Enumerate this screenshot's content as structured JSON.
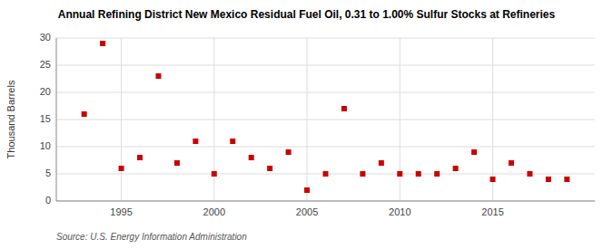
{
  "chart_data": {
    "type": "scatter",
    "title": "Annual Refining District New Mexico Residual Fuel Oil, 0.31 to 1.00% Sulfur Stocks at Refineries",
    "ylabel": "Thousand Barrels",
    "source": "Source: U.S. Energy Information Administration",
    "x": [
      1993,
      1994,
      1995,
      1996,
      1997,
      1998,
      1999,
      2000,
      2001,
      2002,
      2003,
      2004,
      2005,
      2006,
      2007,
      2008,
      2009,
      2010,
      2011,
      2012,
      2013,
      2014,
      2015,
      2016,
      2017,
      2018,
      2019
    ],
    "values": [
      16,
      29,
      6,
      8,
      23,
      7,
      11,
      5,
      11,
      8,
      6,
      9,
      2,
      5,
      17,
      5,
      7,
      5,
      5,
      5,
      6,
      9,
      4,
      7,
      5,
      4,
      4
    ],
    "color": "#cc0000",
    "marker": "square",
    "xlim": [
      1991.5,
      2020.5
    ],
    "xticks": [
      1995,
      2000,
      2005,
      2010,
      2015
    ],
    "ylim": [
      0,
      30
    ],
    "yticks": [
      0,
      5,
      10,
      15,
      20,
      25,
      30
    ],
    "grid": true
  }
}
